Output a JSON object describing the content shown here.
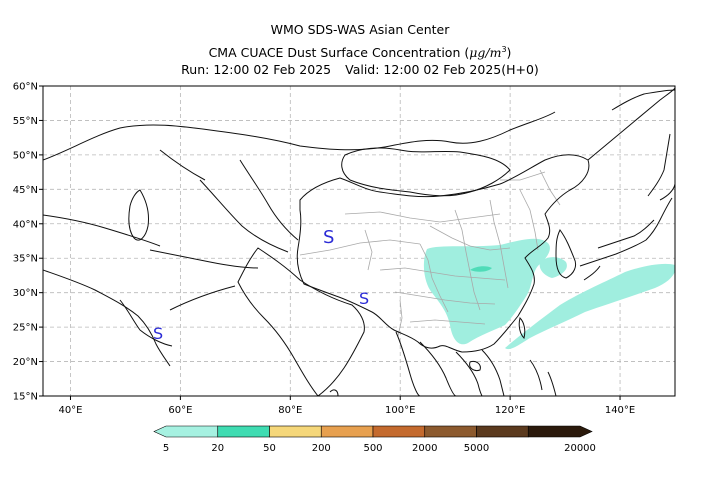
{
  "header": {
    "line1": "WMO SDS-WAS Asian Center",
    "line2_prefix": "CMA CUACE Dust Surface Concentration (",
    "line2_unit": "μg/m",
    "line2_sup": "3",
    "line2_suffix": ")",
    "run": "Run: 12:00 02 Feb 2025",
    "valid": "Valid: 12:00 02 Feb 2025(H+0)"
  },
  "map": {
    "lon_range": [
      35,
      150
    ],
    "lat_range": [
      15,
      60
    ],
    "lat_ticks": [
      {
        "value": 60,
        "label": "60°N"
      },
      {
        "value": 55,
        "label": "55°N"
      },
      {
        "value": 50,
        "label": "50°N"
      },
      {
        "value": 45,
        "label": "45°N"
      },
      {
        "value": 40,
        "label": "40°N"
      },
      {
        "value": 35,
        "label": "35°N"
      },
      {
        "value": 30,
        "label": "30°N"
      },
      {
        "value": 25,
        "label": "25°N"
      },
      {
        "value": 20,
        "label": "20°N"
      },
      {
        "value": 15,
        "label": "15°N"
      }
    ],
    "lon_ticks": [
      {
        "value": 40,
        "label": "40°E"
      },
      {
        "value": 60,
        "label": "60°E"
      },
      {
        "value": 80,
        "label": "80°E"
      },
      {
        "value": 100,
        "label": "100°E"
      },
      {
        "value": 120,
        "label": "120°E"
      },
      {
        "value": 140,
        "label": "140°E"
      }
    ],
    "grid": "dashed",
    "dust_fill_color": "#a0eedf",
    "dust_core_color": "#4fdcb8",
    "station_symbol": "S",
    "station_symbol_color": "#2b2bd6"
  },
  "colorbar": {
    "colors": [
      "#a6f1e1",
      "#3fdcb2",
      "#f5d77a",
      "#e7a04f",
      "#c46a2e",
      "#8c5a2e",
      "#5b3a1e",
      "#2b1a0c"
    ],
    "labels": [
      "5",
      "20",
      "50",
      "200",
      "500",
      "2000",
      "5000",
      "20000"
    ]
  }
}
